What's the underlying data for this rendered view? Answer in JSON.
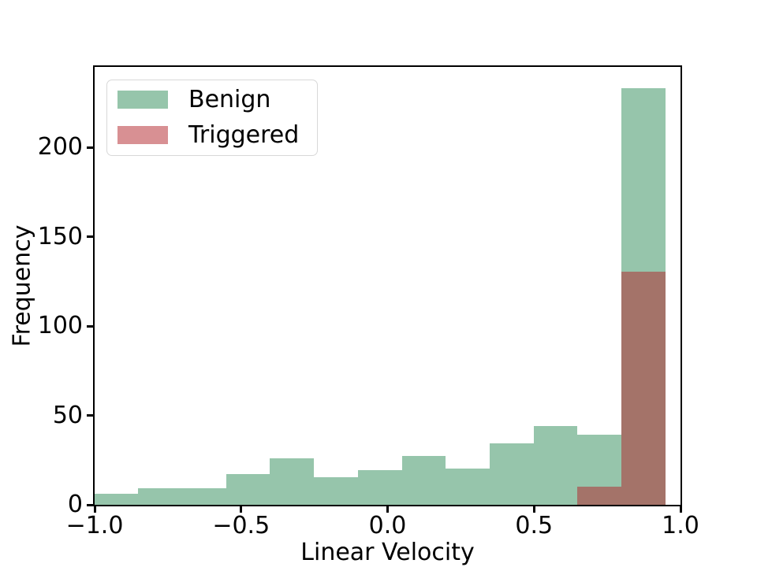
{
  "chart_data": {
    "type": "bar",
    "subtype": "overlaid-histogram",
    "title": "",
    "xlabel": "Linear Velocity",
    "ylabel": "Frequency",
    "bin_edges": [
      -1.0,
      -0.85,
      -0.7,
      -0.55,
      -0.4,
      -0.25,
      -0.1,
      0.05,
      0.2,
      0.35,
      0.5,
      0.65,
      0.8,
      0.95
    ],
    "series": [
      {
        "name": "Benign",
        "values": [
          6,
          9,
          9,
          17,
          26,
          15,
          19,
          27,
          20,
          34,
          44,
          39,
          233
        ],
        "fill": "rgba(46,139,87,0.5)",
        "color_hex": "#96c3a9"
      },
      {
        "name": "Triggered",
        "values": [
          0,
          0,
          0,
          0,
          0,
          0,
          0,
          0,
          0,
          0,
          0,
          10,
          130
        ],
        "fill": "rgba(178,34,40,0.5)",
        "color_hex": "#d89095"
      }
    ],
    "overlap_color_hex": "#a37267",
    "xlim": [
      -1.0,
      1.0
    ],
    "ylim": [
      0,
      245
    ],
    "xticks": [
      -1.0,
      -0.5,
      0.0,
      0.5,
      1.0
    ],
    "xtick_labels": [
      "−1.0",
      "−0.5",
      "0.0",
      "0.5",
      "1.0"
    ],
    "yticks": [
      0,
      50,
      100,
      150,
      200
    ],
    "ytick_labels": [
      "0",
      "50",
      "100",
      "150",
      "200"
    ],
    "grid": false,
    "legend": {
      "position": "upper-left",
      "entries": [
        "Benign",
        "Triggered"
      ]
    },
    "axis_color": "#000000"
  }
}
